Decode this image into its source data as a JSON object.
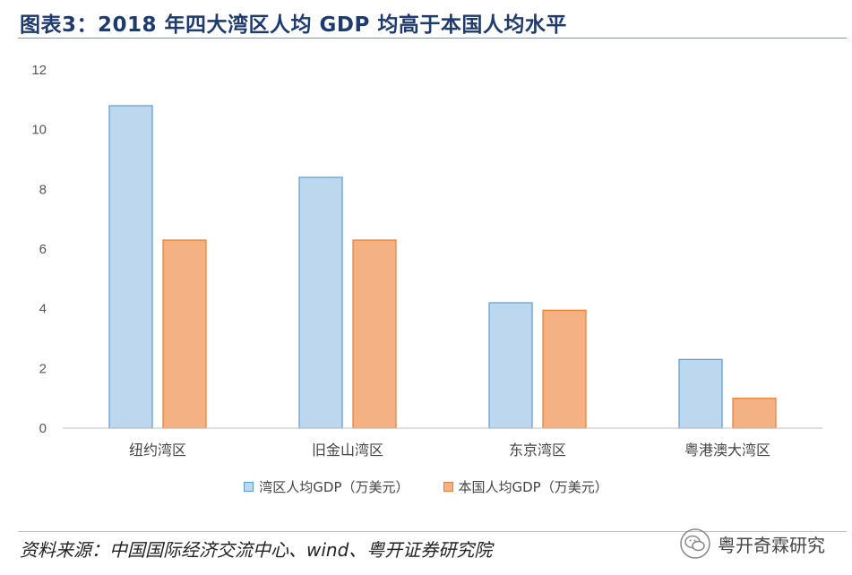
{
  "figure": {
    "title": "图表3：2018 年四大湾区人均 GDP 均高于本国人均水平",
    "source": "资料来源：中国国际经济交流中心、wind、粤开证券研究院",
    "watermark": "粤开奇霖研究",
    "watermark_icon": "wechat-icon"
  },
  "chart_data": {
    "type": "bar",
    "title": "",
    "xlabel": "",
    "ylabel": "",
    "ylim": [
      0,
      12
    ],
    "yticks": [
      0,
      2,
      4,
      6,
      8,
      10,
      12
    ],
    "grid": false,
    "legend_position": "bottom",
    "categories": [
      "纽约湾区",
      "旧金山湾区",
      "东京湾区",
      "粤港澳大湾区"
    ],
    "series": [
      {
        "name": "湾区人均GDP（万美元）",
        "values": [
          10.8,
          8.4,
          4.2,
          2.3
        ],
        "color": "#bdd7ee",
        "stroke": "#5b9bd5"
      },
      {
        "name": "本国人均GDP（万美元）",
        "values": [
          6.3,
          6.3,
          3.95,
          1.0
        ],
        "color": "#f4b183",
        "stroke": "#ed7d31"
      }
    ]
  }
}
